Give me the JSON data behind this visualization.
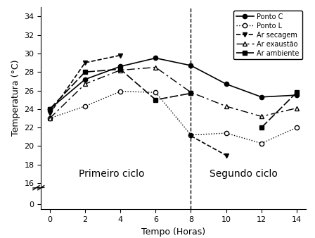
{
  "x": [
    0,
    2,
    4,
    6,
    8,
    10,
    12,
    14
  ],
  "ponto_c": [
    24.0,
    27.2,
    28.6,
    29.5,
    28.7,
    26.7,
    25.3,
    25.5
  ],
  "ponto_l": [
    23.0,
    24.3,
    25.9,
    25.8,
    21.2,
    21.4,
    20.3,
    22.0
  ],
  "ar_secagem": [
    23.5,
    29.0,
    29.8,
    null,
    21.1,
    19.0,
    null,
    null
  ],
  "ar_exaustao": [
    23.0,
    26.7,
    28.2,
    28.5,
    25.8,
    24.3,
    23.2,
    24.1
  ],
  "ar_ambiente": [
    24.0,
    28.0,
    28.3,
    25.0,
    25.7,
    null,
    22.0,
    25.8
  ],
  "xlabel": "Tempo (Horas)",
  "ylabel": "Temperatura (°C)",
  "yticks_upper": [
    16,
    18,
    20,
    22,
    24,
    26,
    28,
    30,
    32,
    34
  ],
  "ytick_zero": [
    0
  ],
  "xticks": [
    0,
    2,
    4,
    6,
    8,
    10,
    12,
    14
  ],
  "vline_x": 8,
  "label_primeiro": "Primeiro ciclo",
  "label_segundo": "Segundo ciclo",
  "legend_labels": [
    "Ponto C",
    "Ponto L",
    "Ar secagem",
    "Ar exaustão",
    "Ar ambiente"
  ]
}
